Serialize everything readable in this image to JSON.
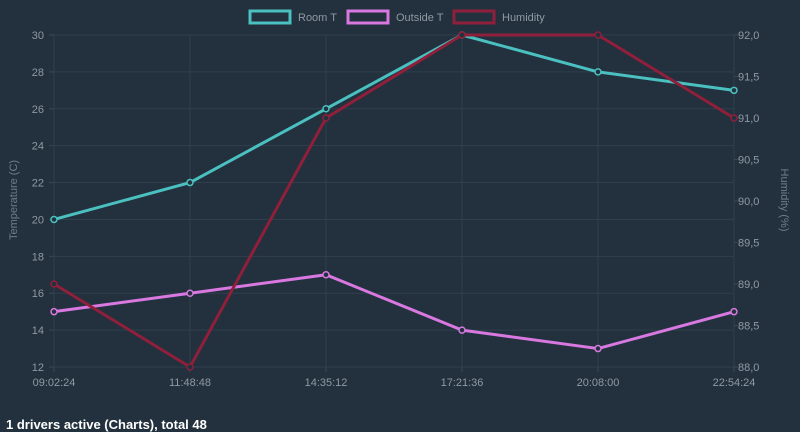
{
  "chart_data": {
    "type": "line",
    "categories": [
      "09:02:24",
      "11:48:48",
      "14:35:12",
      "17:21:36",
      "20:08:00",
      "22:54:24"
    ],
    "y_left": {
      "label": "Temperature (C)",
      "min": 12,
      "max": 30,
      "step": 2,
      "ticks": [
        "12",
        "14",
        "16",
        "18",
        "20",
        "22",
        "24",
        "26",
        "28",
        "30"
      ]
    },
    "y_right": {
      "label": "Humidity (%)",
      "min": 88.0,
      "max": 92.0,
      "step": 0.5,
      "ticks": [
        "88,0",
        "88,5",
        "89,0",
        "89,5",
        "90,0",
        "90,5",
        "91,0",
        "91,5",
        "92,0"
      ]
    },
    "series": [
      {
        "name": "Room T",
        "axis": "left",
        "color": "#4bc0c0",
        "values": [
          20,
          22,
          26,
          30,
          28,
          27
        ]
      },
      {
        "name": "Outside T",
        "axis": "left",
        "color": "#d878e0",
        "values": [
          15,
          16,
          17,
          14,
          13,
          15
        ]
      },
      {
        "name": "Humidity",
        "axis": "right",
        "color": "#8f1f3a",
        "values": [
          89.0,
          88.0,
          91.0,
          92.0,
          92.0,
          91.0
        ]
      }
    ],
    "grid": true,
    "legend_position": "top"
  },
  "status": {
    "text": "1 drivers active (Charts), total 48"
  }
}
